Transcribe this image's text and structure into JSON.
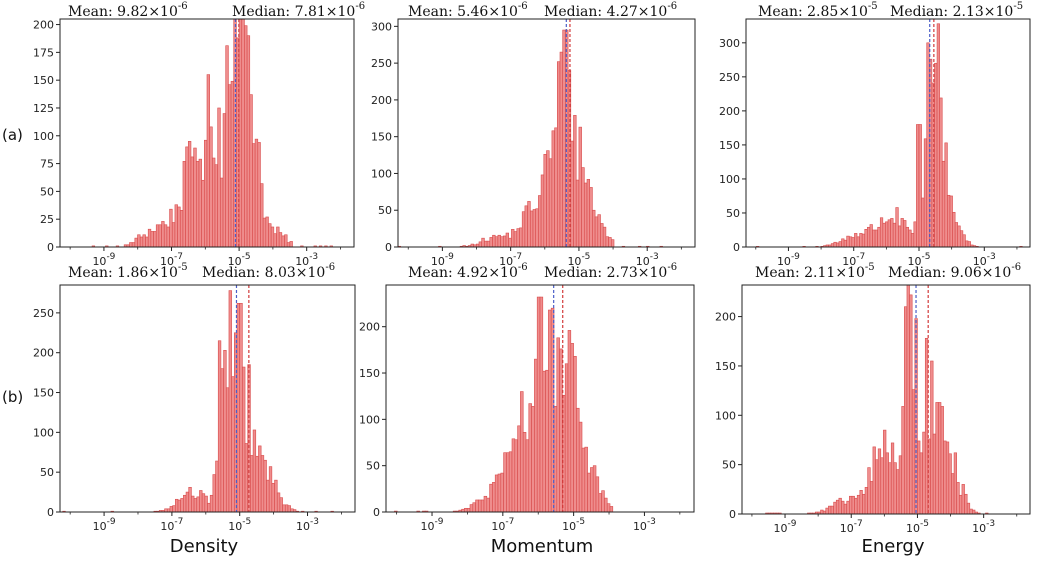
{
  "figure": {
    "row_labels": [
      "(a)",
      "(b)"
    ],
    "column_labels": [
      "Density",
      "Momentum",
      "Energy"
    ]
  },
  "colors": {
    "bar_fill": "#ef8d8d",
    "bar_edge": "#d84a4a",
    "mean_line": "#4a5ec8",
    "median_line": "#d23a3a"
  },
  "chart_data": [
    {
      "type": "bar",
      "id": "a-density",
      "xscale": "log",
      "xticks": [
        "10^-9",
        "10^-7",
        "10^-5",
        "10^-3"
      ],
      "yticks": [
        0,
        25,
        50,
        75,
        100,
        125,
        150,
        175,
        200
      ],
      "ylim": [
        0,
        205
      ],
      "xlim_exp": [
        -10.3,
        -1.6
      ],
      "mean_text": "Mean: 9.82×10^-6",
      "median_text": "Median: 7.81×10^-6",
      "mean": 9.82e-06,
      "median": 7.81e-06,
      "peaks": [
        [
          -7.7,
          10,
          0.35
        ],
        [
          -7.0,
          20,
          0.4
        ],
        [
          -6.4,
          55,
          0.3
        ],
        [
          -5.9,
          100,
          0.3
        ],
        [
          -5.3,
          120,
          0.25
        ],
        [
          -5.05,
          170,
          0.18
        ],
        [
          -4.6,
          130,
          0.2
        ],
        [
          -4.0,
          15,
          0.35
        ]
      ],
      "spikes": [
        [
          -5.05,
          188
        ],
        [
          -4.7,
          190
        ],
        [
          -5.5,
          62
        ],
        [
          -6.1,
          60
        ]
      ],
      "support_exp": [
        -8.4,
        -3.4
      ]
    },
    {
      "type": "bar",
      "id": "a-momentum",
      "xscale": "log",
      "xticks": [
        "10^-9",
        "10^-7",
        "10^-5",
        "10^-3"
      ],
      "yticks": [
        0,
        50,
        100,
        150,
        200,
        250,
        300
      ],
      "ylim": [
        0,
        310
      ],
      "xlim_exp": [
        -10.3,
        -1.6
      ],
      "mean_text": "Mean: 5.46×10^-6",
      "median_text": "Median: 4.27×10^-6",
      "mean": 5.46e-06,
      "median": 4.27e-06,
      "peaks": [
        [
          -7.3,
          15,
          0.5
        ],
        [
          -6.4,
          45,
          0.3
        ],
        [
          -5.8,
          120,
          0.25
        ],
        [
          -5.4,
          210,
          0.17
        ],
        [
          -5.0,
          120,
          0.25
        ],
        [
          -4.5,
          35,
          0.3
        ]
      ],
      "spikes": [
        [
          -5.4,
          295
        ],
        [
          -5.5,
          265
        ],
        [
          -5.3,
          240
        ]
      ],
      "support_exp": [
        -8.5,
        -4.0
      ]
    },
    {
      "type": "bar",
      "id": "a-energy",
      "xscale": "log",
      "xticks": [
        "10^-9",
        "10^-7",
        "10^-5",
        "10^-3"
      ],
      "yticks": [
        0,
        50,
        100,
        150,
        200,
        250,
        300
      ],
      "ylim": [
        0,
        335
      ],
      "xlim_exp": [
        -10.3,
        -1.6
      ],
      "mean_text": "Mean: 2.85×10^-5",
      "median_text": "Median: 2.13×10^-5",
      "mean": 2.85e-05,
      "median": 2.13e-05,
      "peaks": [
        [
          -6.8,
          20,
          0.5
        ],
        [
          -5.8,
          45,
          0.4
        ],
        [
          -4.7,
          130,
          0.22
        ],
        [
          -4.4,
          170,
          0.22
        ],
        [
          -4.0,
          40,
          0.3
        ]
      ],
      "spikes": [
        [
          -4.4,
          328
        ],
        [
          -4.7,
          300
        ],
        [
          -4.5,
          270
        ],
        [
          -5.0,
          180
        ]
      ],
      "support_exp": [
        -8.0,
        -3.2
      ]
    },
    {
      "type": "bar",
      "id": "b-density",
      "xscale": "log",
      "xticks": [
        "10^-9",
        "10^-7",
        "10^-5",
        "10^-3"
      ],
      "yticks": [
        0,
        50,
        100,
        150,
        200,
        250
      ],
      "ylim": [
        0,
        285
      ],
      "xlim_exp": [
        -10.3,
        -1.6
      ],
      "mean_text": "Mean: 1.86×10^-5",
      "median_text": "Median: 8.03×10^-6",
      "mean": 1.86e-05,
      "median": 8.03e-06,
      "peaks": [
        [
          -6.4,
          25,
          0.4
        ],
        [
          -5.4,
          160,
          0.2
        ],
        [
          -5.0,
          120,
          0.2
        ],
        [
          -4.6,
          75,
          0.35
        ],
        [
          -4.0,
          20,
          0.3
        ]
      ],
      "spikes": [
        [
          -5.3,
          278
        ],
        [
          -5.0,
          262
        ],
        [
          -5.6,
          215
        ],
        [
          -4.7,
          185
        ]
      ],
      "support_exp": [
        -8.5,
        -3.3
      ]
    },
    {
      "type": "bar",
      "id": "b-momentum",
      "xscale": "log",
      "xticks": [
        "10^-9",
        "10^-7",
        "10^-5",
        "10^-3"
      ],
      "yticks": [
        0,
        50,
        100,
        150,
        200
      ],
      "ylim": [
        0,
        245
      ],
      "xlim_exp": [
        -10.3,
        -1.6
      ],
      "mean_text": "Mean: 4.92×10^-6",
      "median_text": "Median: 2.73×10^-6",
      "mean": 4.92e-06,
      "median": 2.73e-06,
      "peaks": [
        [
          -7.3,
          20,
          0.4
        ],
        [
          -6.5,
          80,
          0.35
        ],
        [
          -5.9,
          130,
          0.3
        ],
        [
          -5.4,
          120,
          0.3
        ],
        [
          -4.9,
          90,
          0.3
        ],
        [
          -4.4,
          20,
          0.3
        ]
      ],
      "spikes": [
        [
          -5.95,
          232
        ],
        [
          -5.7,
          218
        ],
        [
          -5.35,
          176
        ],
        [
          -4.95,
          168
        ]
      ],
      "support_exp": [
        -8.7,
        -3.9
      ]
    },
    {
      "type": "bar",
      "id": "b-energy",
      "xscale": "log",
      "xticks": [
        "10^-9",
        "10^-7",
        "10^-5",
        "10^-3"
      ],
      "yticks": [
        0,
        50,
        100,
        150,
        200
      ],
      "ylim": [
        0,
        232
      ],
      "xlim_exp": [
        -10.3,
        -1.6
      ],
      "mean_text": "Mean: 2.11×10^-5",
      "median_text": "Median: 9.06×10^-6",
      "mean": 2.11e-05,
      "median": 9.06e-06,
      "peaks": [
        [
          -7.0,
          15,
          0.5
        ],
        [
          -6.0,
          70,
          0.35
        ],
        [
          -5.2,
          190,
          0.2
        ],
        [
          -4.4,
          90,
          0.35
        ],
        [
          -3.9,
          25,
          0.3
        ]
      ],
      "spikes": [
        [
          -5.2,
          222
        ],
        [
          -5.35,
          210
        ],
        [
          -4.75,
          178
        ],
        [
          -4.55,
          155
        ]
      ],
      "support_exp": [
        -8.7,
        -3.1
      ]
    }
  ]
}
